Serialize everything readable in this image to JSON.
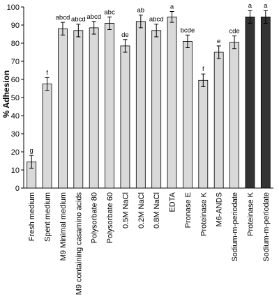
{
  "chart_data": {
    "type": "bar",
    "title": "",
    "xlabel": "",
    "ylabel": "% Adhesion",
    "ylim": [
      0,
      100
    ],
    "yticks": [
      0,
      10,
      20,
      30,
      40,
      50,
      60,
      70,
      80,
      90,
      100
    ],
    "grid": false,
    "categories": [
      "Fresh medium",
      "Spent medium",
      "M9 Minimal medium",
      "M9 containing casamino acids",
      "Polysorbate 80",
      "Polysorbate 60",
      "0.5M NaCl",
      "0.2M NaCl",
      "0.8M NaCl",
      "EDTA",
      "Pronase E",
      "Proteinase K",
      "M6-ANDS",
      "Sodium-m-periodate",
      "Proteinase K",
      "Sodium-m-periodate"
    ],
    "values": [
      14.5,
      57.5,
      88,
      87,
      88.5,
      91,
      78.5,
      92,
      87,
      94.5,
      81,
      59.5,
      75,
      80.5,
      94.5,
      94.5
    ],
    "errors": [
      3.5,
      3.5,
      3.5,
      3.5,
      3.5,
      3.5,
      3.5,
      3.5,
      3.5,
      3,
      3.5,
      3.5,
      3.5,
      3.5,
      3.5,
      3.5
    ],
    "significance": [
      "g",
      "f",
      "abcd",
      "abcd",
      "abcd",
      "abc",
      "de",
      "ab",
      "abcd",
      "a",
      "bcde",
      "f",
      "e",
      "cde",
      "a",
      "a"
    ],
    "bar_groups": [
      "light",
      "light",
      "light",
      "light",
      "light",
      "light",
      "light",
      "light",
      "light",
      "light",
      "light",
      "light",
      "light",
      "light",
      "dark",
      "dark"
    ],
    "colors": {
      "light": "#d9d9d9",
      "dark": "#333333",
      "stroke": "#000000"
    }
  }
}
